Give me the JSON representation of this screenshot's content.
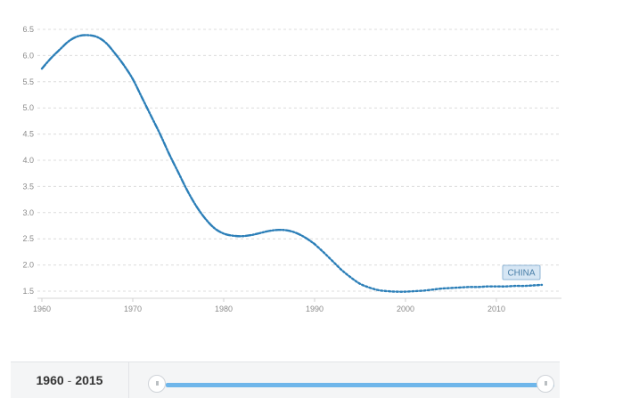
{
  "chart_data": {
    "type": "line",
    "x": [
      1960,
      1961,
      1962,
      1963,
      1964,
      1965,
      1966,
      1967,
      1968,
      1969,
      1970,
      1971,
      1972,
      1973,
      1974,
      1975,
      1976,
      1977,
      1978,
      1979,
      1980,
      1981,
      1982,
      1983,
      1984,
      1985,
      1986,
      1987,
      1988,
      1989,
      1990,
      1991,
      1992,
      1993,
      1994,
      1995,
      1996,
      1997,
      1998,
      1999,
      2000,
      2001,
      2002,
      2003,
      2004,
      2005,
      2006,
      2007,
      2008,
      2009,
      2010,
      2011,
      2012,
      2013,
      2014,
      2015
    ],
    "series": [
      {
        "name": "CHINA",
        "color": "#2c7fb8",
        "values": [
          5.75,
          5.95,
          6.12,
          6.28,
          6.37,
          6.39,
          6.36,
          6.25,
          6.05,
          5.82,
          5.55,
          5.2,
          4.85,
          4.5,
          4.12,
          3.77,
          3.42,
          3.12,
          2.88,
          2.7,
          2.6,
          2.56,
          2.55,
          2.57,
          2.61,
          2.65,
          2.67,
          2.66,
          2.61,
          2.52,
          2.4,
          2.24,
          2.07,
          1.9,
          1.76,
          1.64,
          1.57,
          1.52,
          1.5,
          1.49,
          1.49,
          1.5,
          1.51,
          1.53,
          1.55,
          1.56,
          1.57,
          1.58,
          1.58,
          1.59,
          1.59,
          1.59,
          1.6,
          1.6,
          1.61,
          1.62
        ]
      }
    ],
    "x_ticks": [
      "1960",
      "1970",
      "1980",
      "1990",
      "2000",
      "2010"
    ],
    "y_ticks": [
      "1.5",
      "2.0",
      "2.5",
      "3.0",
      "3.5",
      "4.0",
      "4.5",
      "5.0",
      "5.5",
      "6.0",
      "6.5"
    ],
    "xlim": [
      1960,
      2017
    ],
    "ylim": [
      1.4,
      6.6
    ],
    "grid": true,
    "legend": "none",
    "title": "",
    "xlabel": "",
    "ylabel": ""
  },
  "range_selector": {
    "start": "1960",
    "separator": "-",
    "end": "2015",
    "handle_glyph": "III"
  }
}
